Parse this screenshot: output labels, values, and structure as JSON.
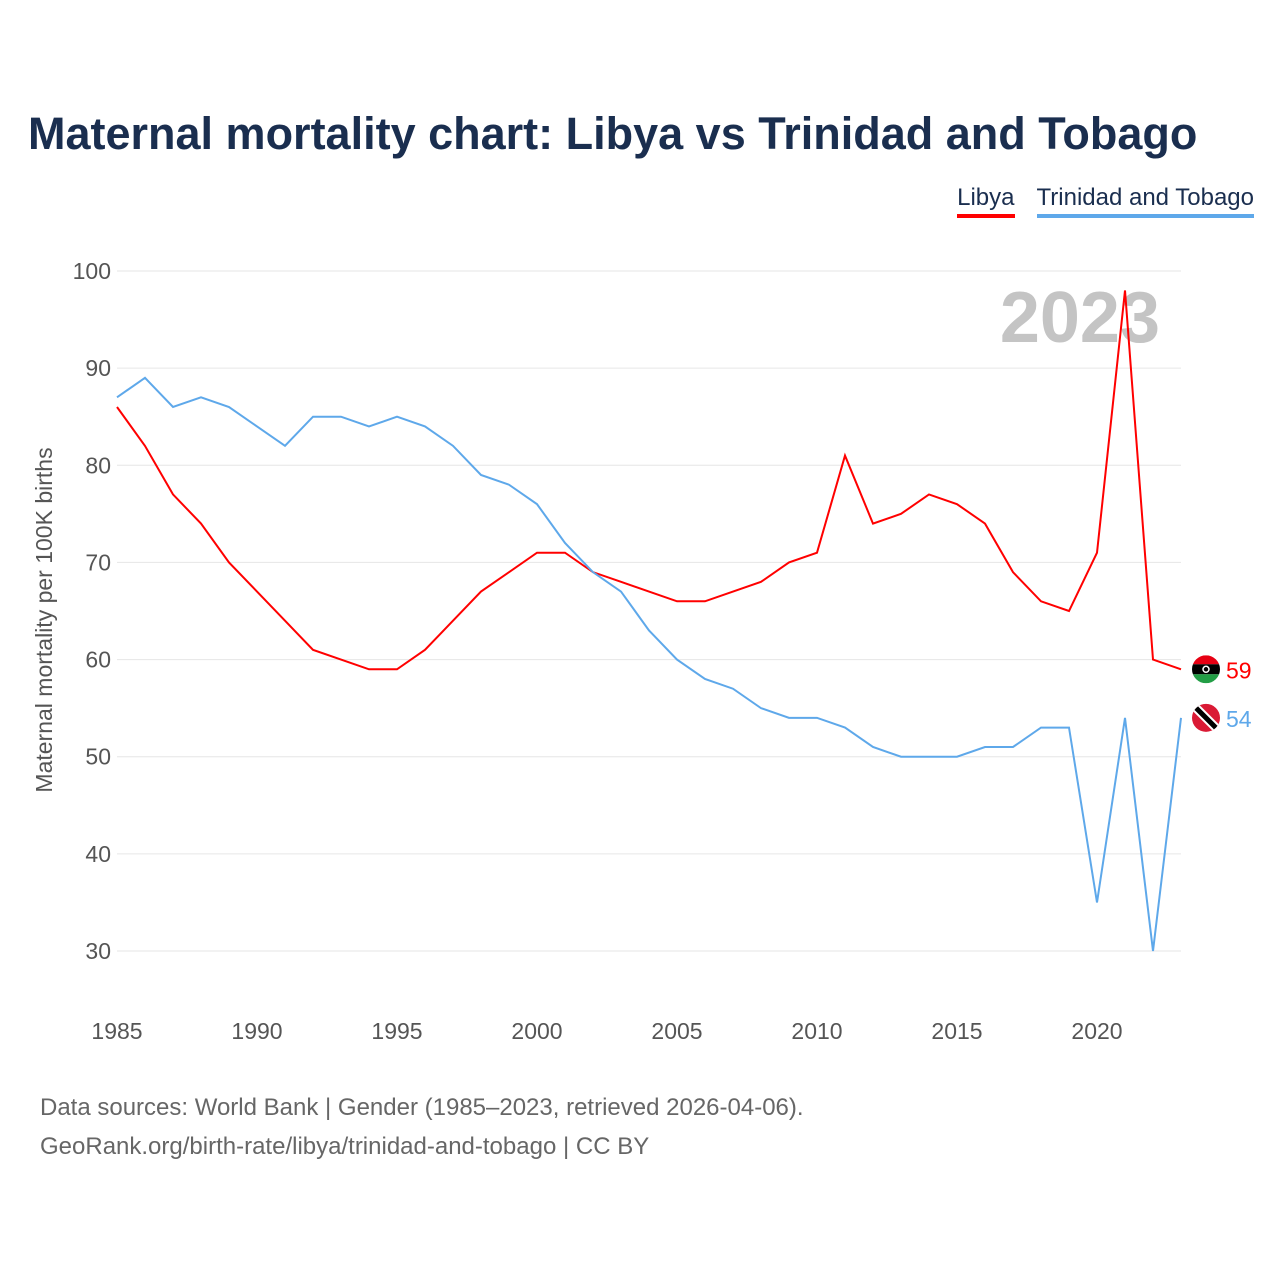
{
  "title": "Maternal mortality chart: Libya vs Trinidad and Tobago",
  "footer": {
    "line1": "Data sources: World Bank | Gender (1985–2023, retrieved 2026-04-06).",
    "line2": "GeoRank.org/birth-rate/libya/trinidad-and-tobago | CC BY"
  },
  "chart_data": {
    "type": "line",
    "title": "Maternal mortality chart: Libya vs Trinidad and Tobago",
    "xlabel": "",
    "ylabel": "Maternal mortality per 100K births",
    "year_watermark": "2023",
    "ylim": [
      30,
      100
    ],
    "xlim": [
      1985,
      2023
    ],
    "yticks": [
      30,
      40,
      50,
      60,
      70,
      80,
      90,
      100
    ],
    "xticks": [
      1985,
      1990,
      1995,
      2000,
      2005,
      2010,
      2015,
      2020
    ],
    "grid": true,
    "legend_position": "top-right",
    "x": [
      1985,
      1986,
      1987,
      1988,
      1989,
      1990,
      1991,
      1992,
      1993,
      1994,
      1995,
      1996,
      1997,
      1998,
      1999,
      2000,
      2001,
      2002,
      2003,
      2004,
      2005,
      2006,
      2007,
      2008,
      2009,
      2010,
      2011,
      2012,
      2013,
      2014,
      2015,
      2016,
      2017,
      2018,
      2019,
      2020,
      2021,
      2022,
      2023
    ],
    "series": [
      {
        "name": "Libya",
        "color": "#ff0000",
        "end_label": "59",
        "values": [
          86,
          82,
          77,
          74,
          70,
          67,
          64,
          61,
          60,
          59,
          59,
          61,
          64,
          67,
          69,
          71,
          71,
          69,
          68,
          67,
          66,
          66,
          67,
          68,
          70,
          71,
          81,
          74,
          75,
          77,
          76,
          74,
          69,
          66,
          65,
          71,
          98,
          60,
          59
        ]
      },
      {
        "name": "Trinidad and Tobago",
        "color": "#5ea8ea",
        "end_label": "54",
        "values": [
          87,
          89,
          86,
          87,
          86,
          84,
          82,
          85,
          85,
          84,
          85,
          84,
          82,
          79,
          78,
          76,
          72,
          69,
          67,
          63,
          60,
          58,
          57,
          55,
          54,
          54,
          53,
          51,
          50,
          50,
          50,
          51,
          51,
          53,
          53,
          35,
          54,
          30,
          54
        ]
      }
    ]
  }
}
